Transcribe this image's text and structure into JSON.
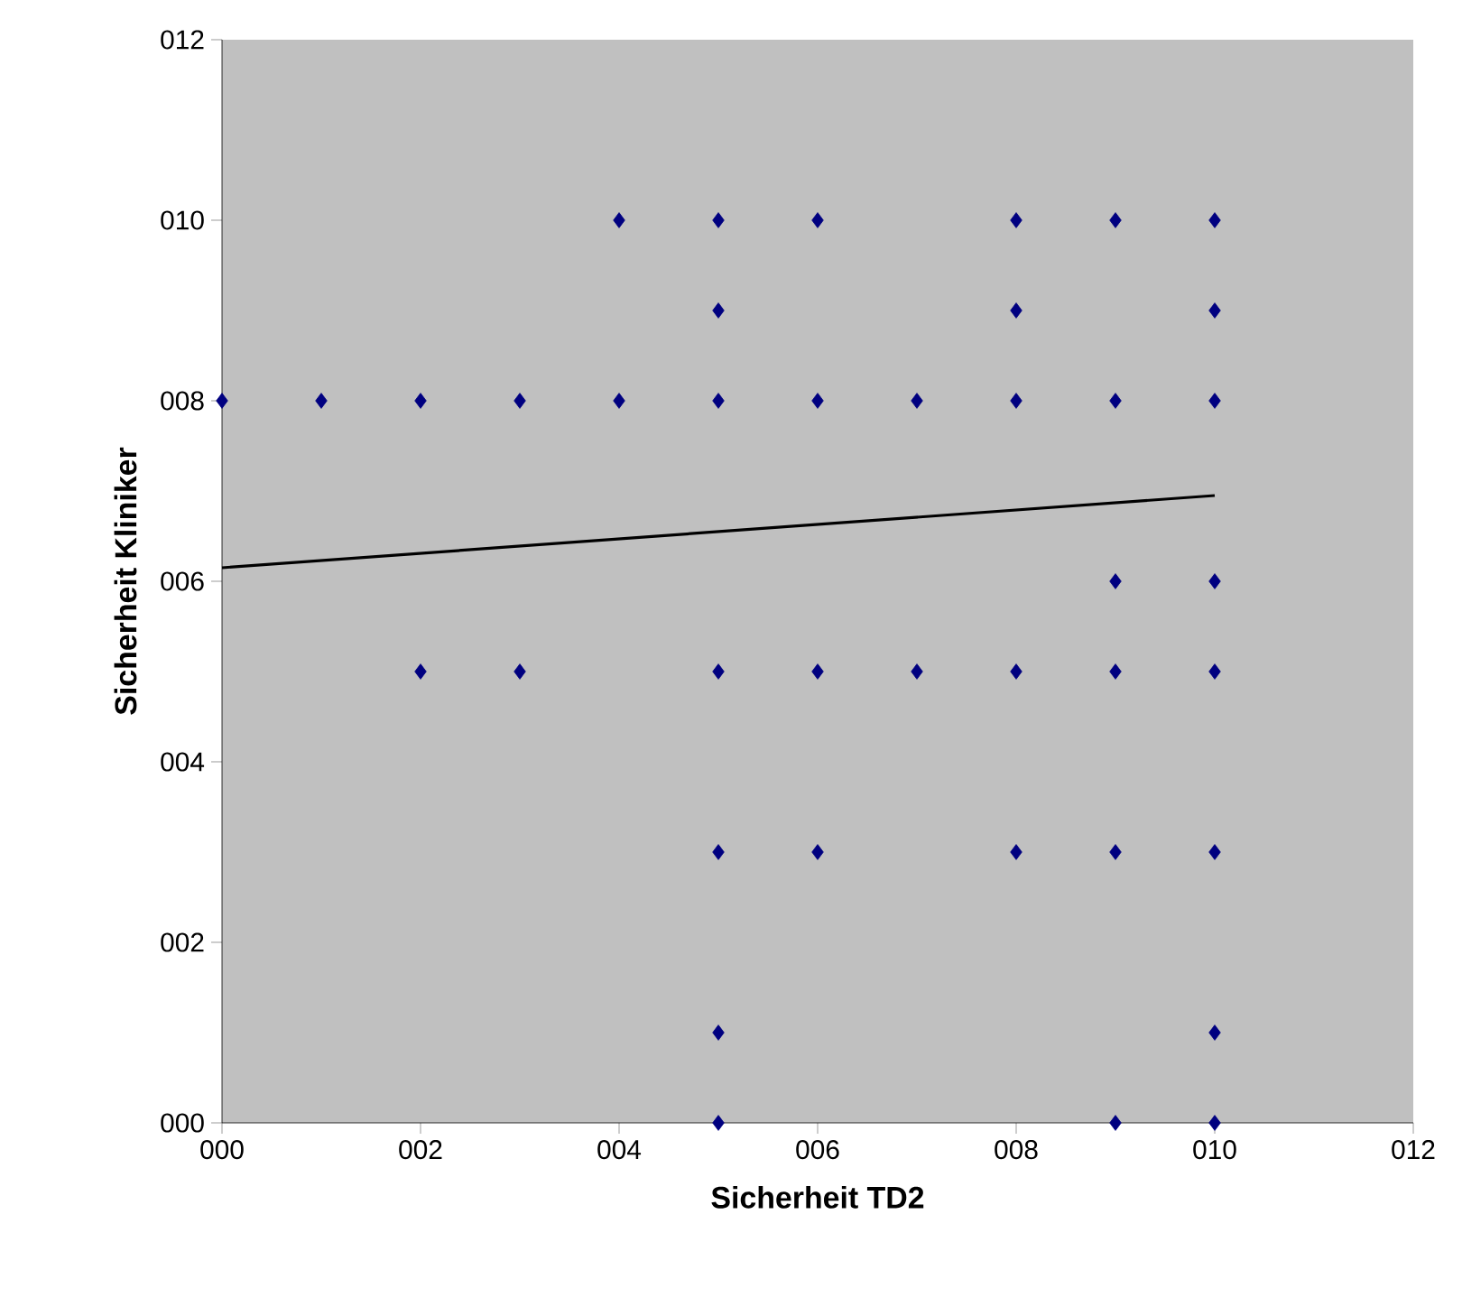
{
  "chart_data": {
    "type": "scatter",
    "xlabel": "Sicherheit TD2",
    "ylabel": "Sicherheit Kliniker",
    "xlim": [
      0,
      12
    ],
    "ylim": [
      0,
      12
    ],
    "xticks": [
      {
        "value": 0,
        "label": "000"
      },
      {
        "value": 2,
        "label": "002"
      },
      {
        "value": 4,
        "label": "004"
      },
      {
        "value": 6,
        "label": "006"
      },
      {
        "value": 8,
        "label": "008"
      },
      {
        "value": 10,
        "label": "010"
      },
      {
        "value": 12,
        "label": "012"
      }
    ],
    "yticks": [
      {
        "value": 0,
        "label": "000"
      },
      {
        "value": 2,
        "label": "002"
      },
      {
        "value": 4,
        "label": "004"
      },
      {
        "value": 6,
        "label": "006"
      },
      {
        "value": 8,
        "label": "008"
      },
      {
        "value": 10,
        "label": "010"
      },
      {
        "value": 12,
        "label": "012"
      }
    ],
    "grid": false,
    "series": [
      {
        "color": "#000080",
        "marker": "diamond",
        "x": [
          4,
          5,
          6,
          8,
          9,
          10,
          5,
          8,
          10,
          0,
          1,
          2,
          3,
          4,
          5,
          6,
          7,
          8,
          9,
          10,
          9,
          10,
          2,
          3,
          5,
          6,
          7,
          8,
          9,
          10,
          5,
          6,
          8,
          9,
          10,
          5,
          10,
          5,
          9,
          10
        ],
        "values": [
          10,
          10,
          10,
          10,
          10,
          10,
          9,
          9,
          9,
          8,
          8,
          8,
          8,
          8,
          8,
          8,
          8,
          8,
          8,
          8,
          6,
          6,
          5,
          5,
          5,
          5,
          5,
          5,
          5,
          5,
          3,
          3,
          3,
          3,
          3,
          1,
          1,
          0,
          0,
          0
        ]
      },
      {
        "type": "line",
        "color": "#000000",
        "marker": "none",
        "line_style": "solid",
        "x": [
          0,
          10
        ],
        "values": [
          6.15,
          6.95
        ]
      }
    ]
  }
}
